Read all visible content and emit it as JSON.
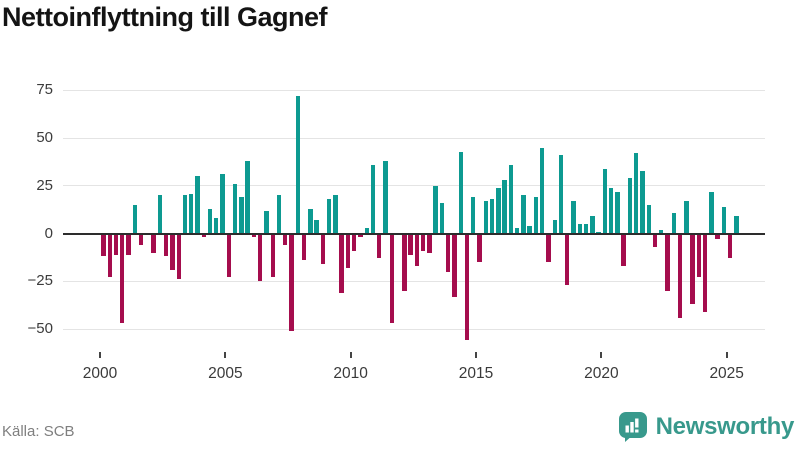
{
  "title": "Nettoinflyttning till Gagnef",
  "source_note": "Källa: SCB",
  "logo": {
    "text": "Newsworthy"
  },
  "colors": {
    "positive_bar": "#0d9a91",
    "negative_bar": "#a50d4d",
    "logo_teal": "#38998c",
    "gridline": "#e4e4e4",
    "zero_line": "#2d2d2d"
  },
  "y_axis": {
    "tick_labels": [
      "75",
      "50",
      "25",
      "0",
      "−25",
      "−50"
    ],
    "tick_values": [
      75,
      50,
      25,
      0,
      -25,
      -50
    ]
  },
  "x_axis": {
    "tick_labels": [
      "2000",
      "2005",
      "2010",
      "2015",
      "2020",
      "2025"
    ],
    "tick_years": [
      2000,
      2005,
      2010,
      2015,
      2020,
      2025
    ]
  },
  "chart_data": {
    "type": "bar",
    "title": "Nettoinflyttning till Gagnef",
    "x_start": "2000 Q1",
    "x_end": "2025 Q2",
    "frequency": "quarterly",
    "ylim": [
      -60,
      80
    ],
    "grid": true,
    "series_by_year": [
      {
        "year": 2000,
        "values": [
          -12,
          -23,
          -11,
          -47
        ]
      },
      {
        "year": 2001,
        "values": [
          -11,
          15,
          -6,
          0
        ]
      },
      {
        "year": 2002,
        "values": [
          -10,
          20,
          -12,
          -19
        ]
      },
      {
        "year": 2003,
        "values": [
          -24,
          20,
          21,
          30
        ]
      },
      {
        "year": 2004,
        "values": [
          -2,
          13,
          8,
          31
        ]
      },
      {
        "year": 2005,
        "values": [
          -23,
          26,
          19,
          38
        ]
      },
      {
        "year": 2006,
        "values": [
          -2,
          -25,
          12,
          -23
        ]
      },
      {
        "year": 2007,
        "values": [
          20,
          -6,
          -51,
          72
        ]
      },
      {
        "year": 2008,
        "values": [
          -14,
          13,
          7,
          -16
        ]
      },
      {
        "year": 2009,
        "values": [
          18,
          20,
          -31,
          -18
        ]
      },
      {
        "year": 2010,
        "values": [
          -9,
          -2,
          3,
          36
        ]
      },
      {
        "year": 2011,
        "values": [
          -13,
          38,
          -47,
          0
        ]
      },
      {
        "year": 2012,
        "values": [
          -30,
          -11,
          -17,
          -9
        ]
      },
      {
        "year": 2013,
        "values": [
          -10,
          25,
          16,
          -20
        ]
      },
      {
        "year": 2014,
        "values": [
          -33,
          43,
          -56,
          19
        ]
      },
      {
        "year": 2015,
        "values": [
          -15,
          17,
          18,
          24
        ]
      },
      {
        "year": 2016,
        "values": [
          28,
          36,
          3,
          20
        ]
      },
      {
        "year": 2017,
        "values": [
          4,
          19,
          45,
          -15
        ]
      },
      {
        "year": 2018,
        "values": [
          7,
          41,
          -27,
          17
        ]
      },
      {
        "year": 2019,
        "values": [
          5,
          5,
          9,
          1
        ]
      },
      {
        "year": 2020,
        "values": [
          34,
          24,
          22,
          -17
        ]
      },
      {
        "year": 2021,
        "values": [
          29,
          42,
          33,
          15
        ]
      },
      {
        "year": 2022,
        "values": [
          -7,
          2,
          -30,
          11
        ]
      },
      {
        "year": 2023,
        "values": [
          -44,
          17,
          -37,
          -23
        ]
      },
      {
        "year": 2024,
        "values": [
          -41,
          22,
          -3,
          14
        ]
      },
      {
        "year": 2025,
        "values": [
          -13,
          9
        ]
      }
    ]
  }
}
